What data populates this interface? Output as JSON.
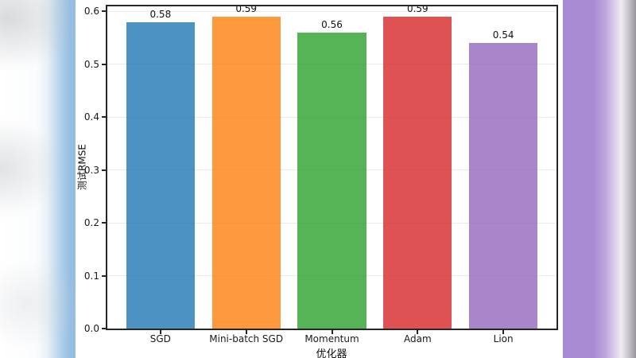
{
  "background": {
    "left_band_color": "#94bee2",
    "left_band_mid_color": "#b9d4ec",
    "right_band_color": "#a98bd3",
    "right_edge_gray": "#98959c"
  },
  "figure": {
    "background_color": "#ffffff",
    "spine_color": "#262626",
    "grid_color": "#ebebeb"
  },
  "chart_data": {
    "type": "bar",
    "title": "",
    "xlabel": "优化器",
    "ylabel": "测试RMSE",
    "categories": [
      "SGD",
      "Mini-batch SGD",
      "Momentum",
      "Adam",
      "Lion"
    ],
    "values": [
      0.58,
      0.59,
      0.56,
      0.59,
      0.54
    ],
    "value_labels": [
      "0.58",
      "0.59",
      "0.56",
      "0.59",
      "0.54"
    ],
    "bar_colors": [
      "rgba(31,119,180,0.8)",
      "rgba(255,127,14,0.8)",
      "rgba(44,160,44,0.8)",
      "rgba(214,39,40,0.8)",
      "rgba(148,103,189,0.8)"
    ],
    "yticks": [
      0.0,
      0.1,
      0.2,
      0.3,
      0.4,
      0.5,
      0.6
    ],
    "ytick_labels": [
      "0.0",
      "0.1",
      "0.2",
      "0.3",
      "0.4",
      "0.5",
      "0.6"
    ],
    "ylim": [
      0,
      0.6095
    ],
    "grid": true,
    "legend": false
  }
}
